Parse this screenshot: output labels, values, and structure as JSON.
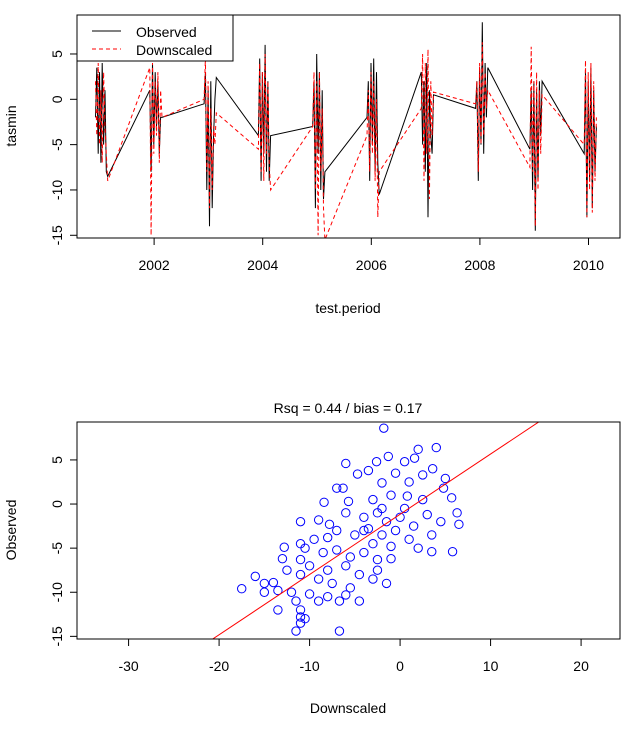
{
  "chart_data": [
    {
      "type": "line",
      "title": "",
      "xlabel": "test.period",
      "ylabel": "tasmin",
      "xlim": [
        2000.58,
        2010.58
      ],
      "ylim": [
        -15.3,
        9.3
      ],
      "xticks": [
        2002,
        2004,
        2006,
        2008,
        2010
      ],
      "xtick_labels": [
        "2002",
        "2004",
        "2006",
        "2008",
        "2010"
      ],
      "yticks": [
        5,
        0,
        -5,
        -10,
        -15
      ],
      "ytick_labels": [
        "5",
        "0",
        "-5",
        "-10",
        "-15"
      ],
      "grid": false,
      "legend": {
        "placement": "top-left",
        "entries": [
          "Observed",
          "Downscaled"
        ]
      },
      "season_starts": [
        2000.92,
        2001.92,
        2002.92,
        2003.92,
        2004.92,
        2005.92,
        2006.92,
        2007.92,
        2008.92,
        2009.92
      ],
      "season_step": 0.025,
      "series": [
        {
          "name": "Observed",
          "color": "#000000",
          "style": "solid",
          "seasons": [
            [
              -2,
              3.5,
              -6,
              3,
              -7,
              4,
              -5,
              1,
              -8,
              -8.5
            ],
            [
              1,
              -8,
              4,
              -5,
              3,
              -3,
              2,
              -6,
              -2,
              -2
            ],
            [
              -0.5,
              3,
              -10,
              1,
              -14,
              2,
              -12,
              -4,
              0,
              2.4
            ],
            [
              -4,
              4.5,
              -9,
              3,
              -6,
              6,
              -8,
              2,
              -9,
              -4
            ],
            [
              -3,
              2,
              -12,
              5,
              -6,
              3,
              -10,
              1,
              -11,
              -8
            ],
            [
              -2,
              2,
              -9,
              4,
              -5,
              4.5,
              -8,
              3,
              -7,
              -10.5
            ],
            [
              3,
              -5,
              2,
              -8,
              4,
              -13,
              1,
              -4,
              -6,
              0.5
            ],
            [
              -1,
              2,
              -9,
              3.5,
              -5,
              8.5,
              -6,
              4,
              -2,
              3.5
            ],
            [
              -5.5,
              1,
              -10,
              2,
              -14.5,
              1,
              -9,
              2,
              -4,
              2
            ],
            [
              -6,
              3,
              -13,
              2,
              -9,
              3.5,
              -12,
              1,
              -8,
              -3
            ]
          ]
        },
        {
          "name": "Downscaled",
          "color": "#ff0000",
          "style": "dashed",
          "seasons": [
            [
              2,
              -4,
              4,
              -5,
              1,
              -7,
              3,
              -3,
              -6,
              -9
            ],
            [
              3.5,
              -15,
              4,
              -6,
              2,
              -4,
              3,
              -7,
              1,
              -2
            ],
            [
              0,
              4.5,
              -8,
              2,
              -12,
              -1,
              -10,
              -3,
              -5,
              -1.5
            ],
            [
              -5.5,
              4,
              -8,
              3,
              -9,
              5,
              -6,
              2,
              -7,
              -10
            ],
            [
              -3,
              3,
              -10,
              2,
              -15,
              3,
              -8,
              -1,
              -12,
              -15.5
            ],
            [
              -4,
              1,
              -8,
              3,
              -6,
              2,
              -9,
              0,
              -13,
              -8
            ],
            [
              -1,
              5,
              -9,
              4,
              -6,
              5.5,
              -11,
              2,
              -4,
              0.8
            ],
            [
              -0.5,
              2,
              -8,
              4,
              -5,
              6.3,
              -4,
              3,
              -1,
              1
            ],
            [
              -7.5,
              5.8,
              -8,
              2,
              -14,
              3,
              -10,
              1,
              -6,
              0.5
            ],
            [
              -5,
              4.3,
              -13,
              3,
              -10,
              4,
              -12.5,
              2,
              -9,
              -2
            ]
          ]
        }
      ]
    },
    {
      "type": "scatter",
      "title": "Rsq = 0.44  / bias =  0.17",
      "xlabel": "Downscaled",
      "ylabel": "Observed",
      "xlim": [
        -35.7,
        24.3
      ],
      "ylim": [
        -15.3,
        9.3
      ],
      "xticks": [
        -30,
        -20,
        -10,
        0,
        10,
        20
      ],
      "xtick_labels": [
        "-30",
        "-20",
        "-10",
        "0",
        "10",
        "20"
      ],
      "yticks": [
        5,
        0,
        -5,
        -10,
        -15
      ],
      "ytick_labels": [
        "5",
        "0",
        "-5",
        "-10",
        "-15"
      ],
      "grid": false,
      "point_color": "#0000ff",
      "line_color": "#ff0000",
      "fit_line": {
        "intercept": -1.16,
        "slope": 0.683
      },
      "points": [
        [
          -1.8,
          8.6
        ],
        [
          4,
          6.4
        ],
        [
          2,
          6.2
        ],
        [
          -1.3,
          5.4
        ],
        [
          -6,
          4.6
        ],
        [
          -2.6,
          4.8
        ],
        [
          0.5,
          4.8
        ],
        [
          1.6,
          5.2
        ],
        [
          -4.7,
          3.4
        ],
        [
          -3.5,
          3.8
        ],
        [
          3.6,
          4
        ],
        [
          2.5,
          3.3
        ],
        [
          -0.5,
          3.5
        ],
        [
          1,
          2.5
        ],
        [
          -2,
          2.4
        ],
        [
          -7,
          1.8
        ],
        [
          -6.3,
          1.8
        ],
        [
          5,
          2.9
        ],
        [
          4.8,
          1.8
        ],
        [
          -8.4,
          0.2
        ],
        [
          -5.7,
          0.3
        ],
        [
          -3,
          0.5
        ],
        [
          -1,
          1
        ],
        [
          0.8,
          0.9
        ],
        [
          2.5,
          0.5
        ],
        [
          5.7,
          0.7
        ],
        [
          6.3,
          -1
        ],
        [
          6.5,
          -2.3
        ],
        [
          4.5,
          -2
        ],
        [
          3,
          -1.2
        ],
        [
          -11,
          -2
        ],
        [
          -9,
          -1.8
        ],
        [
          -7.8,
          -2.3
        ],
        [
          -6,
          -1
        ],
        [
          -4,
          -1.5
        ],
        [
          -2.5,
          -1
        ],
        [
          -1.5,
          -2
        ],
        [
          0,
          -1.5
        ],
        [
          1.5,
          -2.5
        ],
        [
          3.5,
          -3.5
        ],
        [
          -9.5,
          -4
        ],
        [
          -8,
          -3.8
        ],
        [
          -7,
          -3
        ],
        [
          -5,
          -3.5
        ],
        [
          -3.5,
          -2.8
        ],
        [
          -2,
          -3.5
        ],
        [
          -0.5,
          -3
        ],
        [
          1,
          -4
        ],
        [
          2,
          -5
        ],
        [
          3.5,
          -5.4
        ],
        [
          5.8,
          -5.4
        ],
        [
          -12.8,
          -4.9
        ],
        [
          -11,
          -4.5
        ],
        [
          -10.5,
          -5
        ],
        [
          -8.5,
          -5.5
        ],
        [
          -7,
          -5.2
        ],
        [
          -5.5,
          -6
        ],
        [
          -4,
          -5.5
        ],
        [
          -2.5,
          -6.3
        ],
        [
          -1,
          -6.2
        ],
        [
          -13,
          -6.2
        ],
        [
          -11,
          -6.3
        ],
        [
          -10,
          -7
        ],
        [
          -8,
          -7.5
        ],
        [
          -6,
          -7
        ],
        [
          -4.5,
          -8
        ],
        [
          -2.5,
          -7.5
        ],
        [
          -1.5,
          -9
        ],
        [
          -12.5,
          -7.5
        ],
        [
          -11,
          -8
        ],
        [
          -9,
          -8.5
        ],
        [
          -7.5,
          -9
        ],
        [
          -5.5,
          -9.5
        ],
        [
          -3,
          -8.5
        ],
        [
          -16,
          -8.2
        ],
        [
          -17.5,
          -9.6
        ],
        [
          -15,
          -9
        ],
        [
          -14,
          -8.9
        ],
        [
          -13.5,
          -9.8
        ],
        [
          -15,
          -10
        ],
        [
          -12,
          -10
        ],
        [
          -10,
          -10.2
        ],
        [
          -8,
          -10.5
        ],
        [
          -6,
          -10.3
        ],
        [
          -4.5,
          -11
        ],
        [
          -11.5,
          -11
        ],
        [
          -9,
          -11
        ],
        [
          -6.7,
          -11
        ],
        [
          -13.5,
          -12
        ],
        [
          -11,
          -12
        ],
        [
          -11,
          -12.8
        ],
        [
          -10.5,
          -13
        ],
        [
          -11,
          -13.5
        ],
        [
          -11.5,
          -14.4
        ],
        [
          -6.7,
          -14.4
        ],
        [
          -3,
          -4.5
        ],
        [
          -4,
          -3
        ],
        [
          -2,
          -0.5
        ],
        [
          0.5,
          -0.5
        ],
        [
          -1,
          -4.8
        ]
      ]
    }
  ]
}
